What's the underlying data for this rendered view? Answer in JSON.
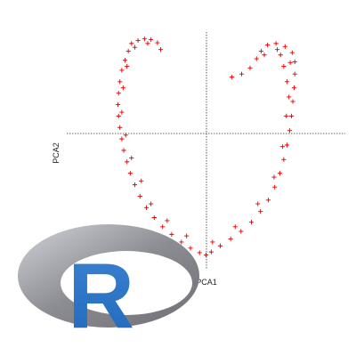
{
  "chart_data": {
    "type": "scatter",
    "title": "",
    "xlabel": "PCA1",
    "ylabel": "PCA2",
    "xlim": [
      -2.15,
      2.15
    ],
    "ylim": [
      -1.75,
      1.35
    ],
    "marker": "+",
    "marker_color": "#e00000",
    "axis_style": "dashed crosshair through origin",
    "grid": false,
    "legend": "none",
    "series": [
      {
        "points": [
          [
            -1.15,
            1.2
          ],
          [
            -1.05,
            1.24
          ],
          [
            -0.95,
            1.26
          ],
          [
            -0.85,
            1.25
          ],
          [
            -0.75,
            1.21
          ],
          [
            -0.7,
            1.12
          ],
          [
            -1.2,
            1.1
          ],
          [
            -1.25,
            0.98
          ],
          [
            -1.3,
            0.85
          ],
          [
            -1.33,
            0.7
          ],
          [
            -1.35,
            0.55
          ],
          [
            -1.36,
            0.4
          ],
          [
            -1.35,
            0.25
          ],
          [
            -1.33,
            0.1
          ],
          [
            -1.3,
            -0.05
          ],
          [
            -1.27,
            -0.2
          ],
          [
            -1.22,
            -0.35
          ],
          [
            -1.17,
            -0.5
          ],
          [
            -1.1,
            -0.65
          ],
          [
            -1.02,
            -0.8
          ],
          [
            -0.92,
            -0.95
          ],
          [
            -0.8,
            -1.08
          ],
          [
            -0.67,
            -1.2
          ],
          [
            -0.53,
            -1.3
          ],
          [
            -0.38,
            -1.4
          ],
          [
            -0.24,
            -1.48
          ],
          [
            -0.1,
            -1.54
          ],
          [
            0.0,
            -1.57
          ],
          [
            0.08,
            -1.53
          ],
          [
            0.22,
            -1.45
          ],
          [
            0.38,
            -1.36
          ],
          [
            0.54,
            -1.26
          ],
          [
            0.7,
            -1.14
          ],
          [
            0.84,
            -1.0
          ],
          [
            0.96,
            -0.85
          ],
          [
            1.06,
            -0.68
          ],
          [
            1.14,
            -0.5
          ],
          [
            1.2,
            -0.32
          ],
          [
            1.25,
            -0.13
          ],
          [
            1.29,
            0.06
          ],
          [
            1.32,
            0.25
          ],
          [
            1.34,
            0.44
          ],
          [
            1.36,
            0.62
          ],
          [
            1.37,
            0.8
          ],
          [
            1.37,
            0.96
          ],
          [
            1.33,
            1.08
          ],
          [
            1.22,
            1.16
          ],
          [
            1.08,
            1.2
          ],
          [
            0.95,
            1.18
          ],
          [
            0.85,
            1.1
          ],
          [
            0.78,
            1.0
          ],
          [
            0.68,
            0.88
          ],
          [
            0.55,
            0.8
          ],
          [
            0.4,
            0.76
          ],
          [
            1.2,
            0.9
          ],
          [
            1.25,
            0.7
          ],
          [
            1.28,
            0.5
          ],
          [
            1.15,
            1.05
          ],
          [
            -1.28,
            0.62
          ],
          [
            -1.3,
            0.3
          ],
          [
            -1.24,
            0.0
          ],
          [
            -1.15,
            -0.3
          ],
          [
            -1.0,
            -0.6
          ],
          [
            -0.85,
            -0.9
          ],
          [
            -0.6,
            -1.12
          ],
          [
            -0.3,
            -1.32
          ],
          [
            0.1,
            -1.4
          ],
          [
            0.45,
            -1.2
          ],
          [
            0.8,
            -0.9
          ],
          [
            1.05,
            -0.55
          ],
          [
            1.18,
            -0.15
          ],
          [
            1.24,
            0.25
          ],
          [
            -1.1,
            1.15
          ],
          [
            -0.9,
            1.2
          ],
          [
            -1.22,
            0.9
          ],
          [
            1.3,
            0.95
          ],
          [
            1.1,
            1.12
          ],
          [
            0.9,
            1.05
          ]
        ]
      }
    ]
  },
  "logo": {
    "letter": "R",
    "ring_color": "#8c8d93",
    "letter_color": "#2068bb"
  }
}
